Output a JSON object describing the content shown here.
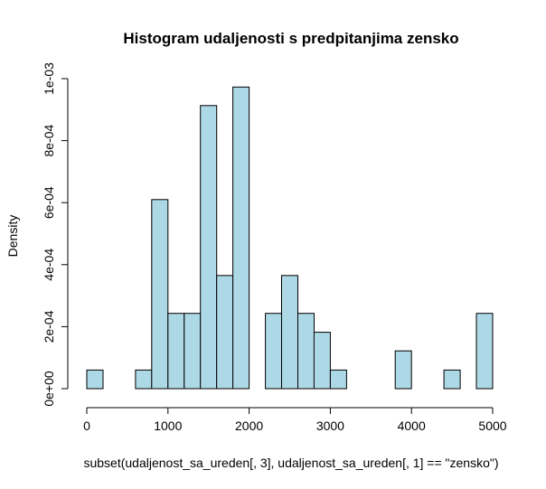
{
  "chart_data": {
    "type": "bar",
    "title": "Histogram udaljenosti s predpitanjima zensko",
    "xlabel": "subset(udaljenost_sa_ureden[, 3], udaljenost_sa_ureden[, 1] == \"zensko\")",
    "ylabel": "Density",
    "xlim": [
      0,
      5000
    ],
    "ylim": [
      0,
      0.001
    ],
    "x_ticks": [
      0,
      1000,
      2000,
      3000,
      4000,
      5000
    ],
    "x_tick_labels": [
      "0",
      "1000",
      "2000",
      "3000",
      "4000",
      "5000"
    ],
    "y_ticks": [
      0,
      0.0002,
      0.0004,
      0.0006,
      0.0008,
      0.001
    ],
    "y_tick_labels": [
      "0e+00",
      "2e-04",
      "4e-04",
      "6e-04",
      "8e-04",
      "1e-03"
    ],
    "bin_width": 200,
    "bins": [
      {
        "x0": 0,
        "x1": 200,
        "density": 6e-05
      },
      {
        "x0": 200,
        "x1": 400,
        "density": 0
      },
      {
        "x0": 400,
        "x1": 600,
        "density": 0
      },
      {
        "x0": 600,
        "x1": 800,
        "density": 6e-05
      },
      {
        "x0": 800,
        "x1": 1000,
        "density": 0.00061
      },
      {
        "x0": 1000,
        "x1": 1200,
        "density": 0.000243
      },
      {
        "x0": 1200,
        "x1": 1400,
        "density": 0.000243
      },
      {
        "x0": 1400,
        "x1": 1600,
        "density": 0.000913
      },
      {
        "x0": 1600,
        "x1": 1800,
        "density": 0.000365
      },
      {
        "x0": 1800,
        "x1": 2000,
        "density": 0.000973
      },
      {
        "x0": 2000,
        "x1": 2200,
        "density": 0
      },
      {
        "x0": 2200,
        "x1": 2400,
        "density": 0.000243
      },
      {
        "x0": 2400,
        "x1": 2600,
        "density": 0.000365
      },
      {
        "x0": 2600,
        "x1": 2800,
        "density": 0.000243
      },
      {
        "x0": 2800,
        "x1": 3000,
        "density": 0.000182
      },
      {
        "x0": 3000,
        "x1": 3200,
        "density": 6e-05
      },
      {
        "x0": 3200,
        "x1": 3400,
        "density": 0
      },
      {
        "x0": 3400,
        "x1": 3600,
        "density": 0
      },
      {
        "x0": 3600,
        "x1": 3800,
        "density": 0
      },
      {
        "x0": 3800,
        "x1": 4000,
        "density": 0.000122
      },
      {
        "x0": 4000,
        "x1": 4200,
        "density": 0
      },
      {
        "x0": 4200,
        "x1": 4400,
        "density": 0
      },
      {
        "x0": 4400,
        "x1": 4600,
        "density": 6e-05
      },
      {
        "x0": 4600,
        "x1": 4800,
        "density": 0
      },
      {
        "x0": 4800,
        "x1": 5000,
        "density": 0.000243
      }
    ],
    "bar_color": "#add8e6",
    "grid": false
  }
}
